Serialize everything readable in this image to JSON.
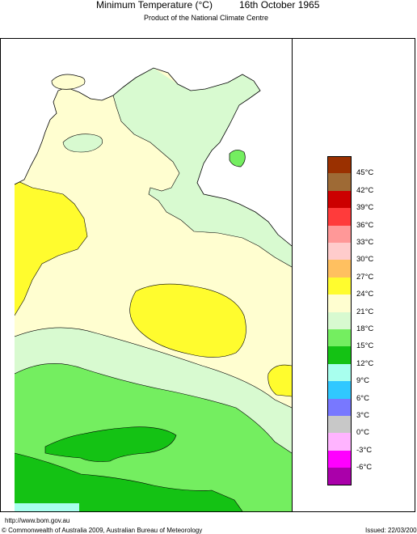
{
  "header": {
    "title": "Minimum Temperature (°C)",
    "date": "16th October 1965",
    "subtitle": "Product of the National Climate Centre"
  },
  "legend": {
    "labels": [
      "45°C",
      "42°C",
      "39°C",
      "36°C",
      "33°C",
      "30°C",
      "27°C",
      "24°C",
      "21°C",
      "18°C",
      "15°C",
      "12°C",
      "9°C",
      "6°C",
      "3°C",
      "0°C",
      "-3°C",
      "-6°C"
    ],
    "colors": [
      "#9a3000",
      "#9e6a35",
      "#cc0000",
      "#ff3b3b",
      "#ff9898",
      "#ffcccc",
      "#ffc060",
      "#fffc2e",
      "#fffed0",
      "#d8fad0",
      "#74ee60",
      "#14c214",
      "#a8ffee",
      "#30c8ff",
      "#7878ff",
      "#c8c8c8",
      "#ffb4ff",
      "#ff00ff",
      "#aa00aa"
    ]
  },
  "map": {
    "colors": {
      "band_21_24": "#fffed0",
      "band_24_27": "#fffc2e",
      "band_18_21": "#d8fad0",
      "band_15_18": "#74ee60",
      "band_12_15": "#14c214",
      "band_9_12": "#a8ffee",
      "ocean": "#ffffff"
    }
  },
  "footer": {
    "url": "http://www.bom.gov.au",
    "copyright": "© Commonwealth of Australia 2009, Australian Bureau of Meteorology",
    "issued": "Issued: 22/03/2009"
  }
}
